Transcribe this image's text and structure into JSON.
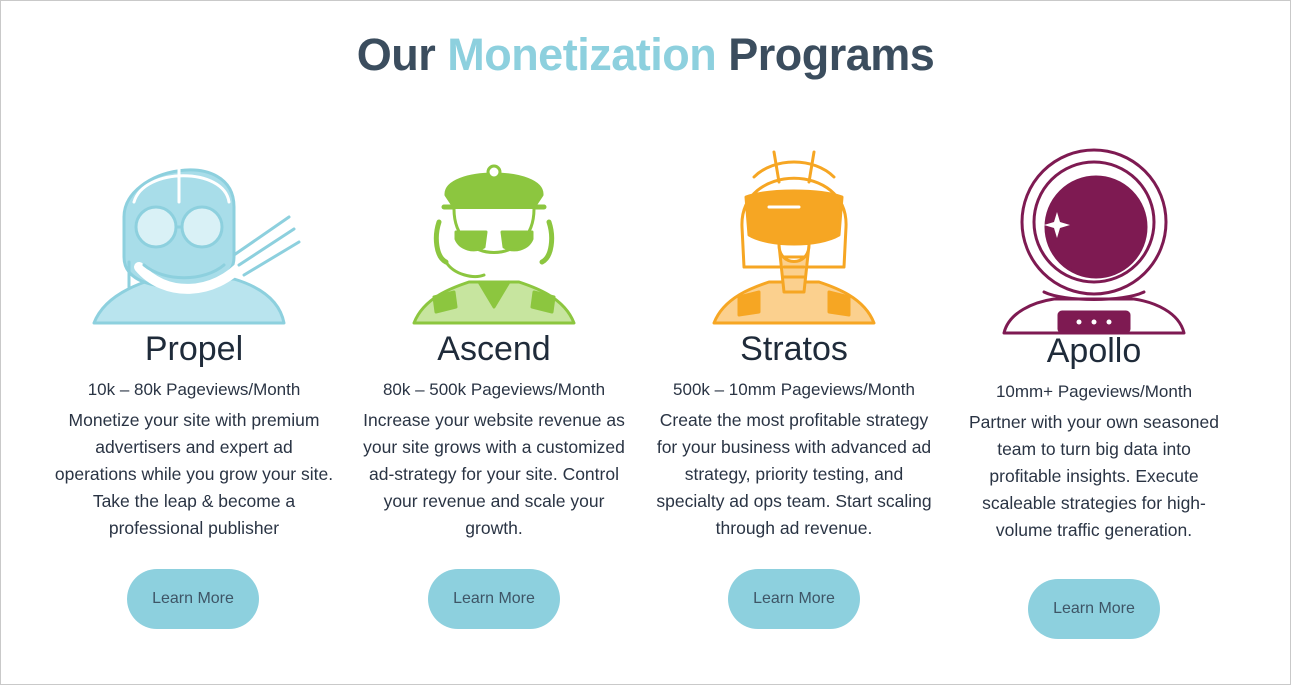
{
  "header": {
    "title_part1": "Our",
    "title_accent": "Monetization",
    "title_part2": "Programs"
  },
  "colors": {
    "accent": "#8dd0de",
    "propel": "#8dd0de",
    "ascend": "#8cc63f",
    "stratos": "#f6a623",
    "apollo": "#7e1a52",
    "heading": "#3b4d5e"
  },
  "programs": [
    {
      "name": "Propel",
      "icon": "aviator-pilot-icon",
      "pageviews": "10k – 80k Pageviews/Month",
      "description": "Monetize your site with premium advertisers and expert ad operations while you grow your site. Take the leap & become a professional publisher",
      "button_label": "Learn More"
    },
    {
      "name": "Ascend",
      "icon": "airline-pilot-icon",
      "pageviews": "80k – 500k Pageviews/Month",
      "description": "Increase your website revenue as your site grows with a customized ad-strategy for your site. Control your revenue and scale your growth.",
      "button_label": "Learn More"
    },
    {
      "name": "Stratos",
      "icon": "jet-pilot-icon",
      "pageviews": "500k – 10mm Pageviews/Month",
      "description": "Create the most profitable strategy for your business with advanced ad strategy, priority testing, and specialty ad ops team. Start scaling through ad revenue.",
      "button_label": "Learn More"
    },
    {
      "name": "Apollo",
      "icon": "astronaut-icon",
      "pageviews": "10mm+ Pageviews/Month",
      "description": "Partner with your own seasoned team to turn big data into profitable insights. Execute scaleable strategies for high-volume traffic generation.",
      "button_label": "Learn More"
    }
  ]
}
